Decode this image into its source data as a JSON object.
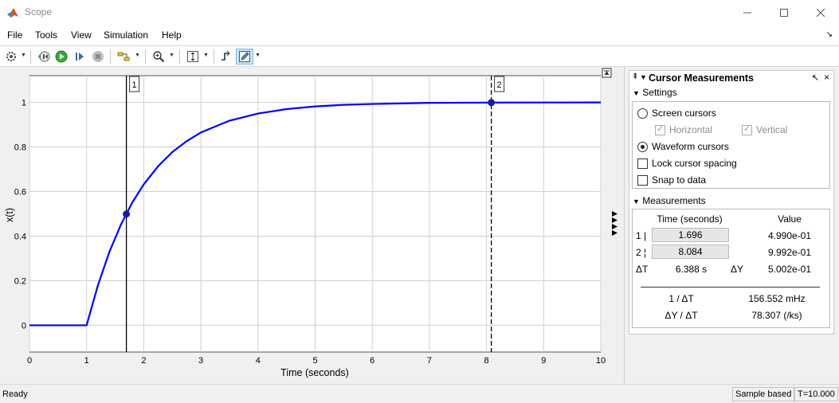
{
  "window": {
    "title": "Scope"
  },
  "menu": {
    "items": [
      "File",
      "Tools",
      "View",
      "Simulation",
      "Help"
    ]
  },
  "toolbar": {
    "icons": [
      "gear-icon",
      "step-back-icon",
      "run-icon",
      "step-forward-icon",
      "stop-icon",
      "highlight-icon",
      "zoom-icon",
      "autoscale-icon",
      "measure-icon",
      "edit-icon"
    ]
  },
  "plot": {
    "xlabel": "Time (seconds)",
    "ylabel": "x(t)",
    "cursor1_label": "1",
    "cursor2_label": "2",
    "line_color": "#0000ff",
    "cursor1_time": 1.696,
    "cursor2_time": 8.084
  },
  "chart_data": {
    "type": "line",
    "xlabel": "Time (seconds)",
    "ylabel": "x(t)",
    "xlim": [
      0,
      10
    ],
    "ylim": [
      -0.12,
      1.12
    ],
    "xticks": [
      "0",
      "1",
      "2",
      "3",
      "4",
      "5",
      "6",
      "7",
      "8",
      "9",
      "10"
    ],
    "yticks": [
      "0",
      "0.2",
      "0.4",
      "0.6",
      "0.8",
      "1"
    ],
    "grid": true,
    "series": [
      {
        "points": [
          [
            0,
            0
          ],
          [
            1,
            0
          ],
          [
            1.2,
            0.181
          ],
          [
            1.4,
            0.33
          ],
          [
            1.6,
            0.451
          ],
          [
            1.696,
            0.499
          ],
          [
            1.8,
            0.551
          ],
          [
            2,
            0.632
          ],
          [
            2.25,
            0.713
          ],
          [
            2.5,
            0.777
          ],
          [
            2.75,
            0.826
          ],
          [
            3,
            0.865
          ],
          [
            3.5,
            0.918
          ],
          [
            4,
            0.95
          ],
          [
            4.5,
            0.97
          ],
          [
            5,
            0.982
          ],
          [
            5.5,
            0.989
          ],
          [
            6,
            0.993
          ],
          [
            7,
            0.998
          ],
          [
            8.084,
            0.9992
          ],
          [
            9,
            0.9997
          ],
          [
            10,
            0.9999
          ]
        ]
      }
    ],
    "markers": [
      [
        1.696,
        0.499
      ],
      [
        8.084,
        0.9992
      ]
    ]
  },
  "panel": {
    "title": "Cursor Measurements",
    "settings_label": "Settings",
    "screen_cursors": "Screen cursors",
    "horizontal": "Horizontal",
    "vertical": "Vertical",
    "waveform_cursors": "Waveform cursors",
    "lock_spacing": "Lock cursor spacing",
    "snap": "Snap to data",
    "measurements_label": "Measurements",
    "col_time": "Time (seconds)",
    "col_value": "Value",
    "row1_label": "1 |",
    "row1_time": "1.696",
    "row1_value": "4.990e-01",
    "row2_label": "2 ¦",
    "row2_time": "8.084",
    "row2_value": "9.992e-01",
    "dt_label": "ΔT",
    "dt_value": "6.388 s",
    "dy_label": "ΔY",
    "dy_value": "5.002e-01",
    "inv_dt_label": "1 / ΔT",
    "inv_dt_value": "156.552 mHz",
    "dydt_label": "ΔY / ΔT",
    "dydt_value": "78.307 (/ks)"
  },
  "status": {
    "left": "Ready",
    "mode": "Sample based",
    "time": "T=10.000"
  }
}
